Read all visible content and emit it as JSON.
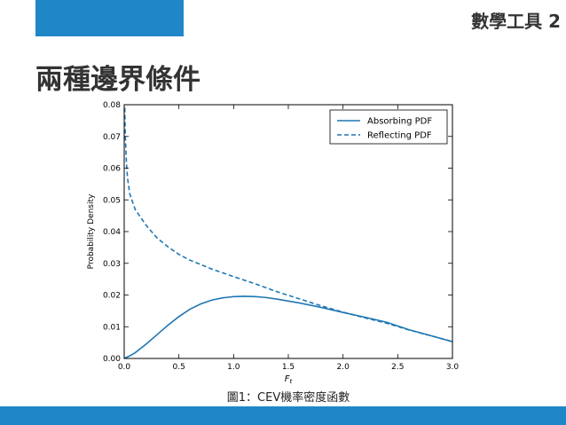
{
  "slide": {
    "corner_label": "數學工具 2",
    "title": "兩種邊界條件",
    "caption": "圖1：CEV機率密度函數",
    "accent_color": "#1f86c8"
  },
  "chart_data": {
    "type": "line",
    "title": "",
    "xlabel": "Ft",
    "ylabel": "Probability Density",
    "xlim": [
      0.0,
      3.0
    ],
    "ylim": [
      0.0,
      0.08
    ],
    "xticks": [
      "0.0",
      "0.5",
      "1.0",
      "1.5",
      "2.0",
      "2.5",
      "3.0"
    ],
    "yticks": [
      "0.00",
      "0.01",
      "0.02",
      "0.03",
      "0.04",
      "0.05",
      "0.06",
      "0.07",
      "0.08"
    ],
    "grid": false,
    "legend_position": "top-right",
    "series": [
      {
        "name": "Absorbing PDF",
        "style": "solid",
        "color": "#1f77b4",
        "x": [
          0.0,
          0.05,
          0.1,
          0.2,
          0.3,
          0.4,
          0.5,
          0.6,
          0.7,
          0.8,
          0.9,
          1.0,
          1.1,
          1.2,
          1.3,
          1.4,
          1.5,
          1.6,
          1.7,
          1.8,
          1.9,
          2.0,
          2.2,
          2.4,
          2.6,
          2.8,
          3.0
        ],
        "y": [
          0.0,
          0.0008,
          0.0018,
          0.0045,
          0.0075,
          0.0105,
          0.0132,
          0.0155,
          0.0172,
          0.0184,
          0.0191,
          0.0195,
          0.0196,
          0.0195,
          0.0192,
          0.0187,
          0.0181,
          0.0175,
          0.0168,
          0.0161,
          0.0153,
          0.0145,
          0.013,
          0.0114,
          0.0091,
          0.0072,
          0.0053
        ]
      },
      {
        "name": "Reflecting PDF",
        "style": "dashed",
        "color": "#1f77b4",
        "x": [
          0.005,
          0.01,
          0.02,
          0.03,
          0.05,
          0.08,
          0.1,
          0.15,
          0.2,
          0.3,
          0.4,
          0.5,
          0.6,
          0.8,
          1.0,
          1.2,
          1.4,
          1.6,
          1.8,
          2.0,
          2.2,
          2.4,
          2.6,
          2.8,
          3.0
        ],
        "y": [
          0.079,
          0.07,
          0.062,
          0.057,
          0.052,
          0.049,
          0.047,
          0.0445,
          0.042,
          0.038,
          0.0352,
          0.0328,
          0.031,
          0.0282,
          0.0258,
          0.0235,
          0.021,
          0.0188,
          0.0166,
          0.0146,
          0.0128,
          0.0111,
          0.009,
          0.0072,
          0.0053
        ]
      }
    ]
  }
}
